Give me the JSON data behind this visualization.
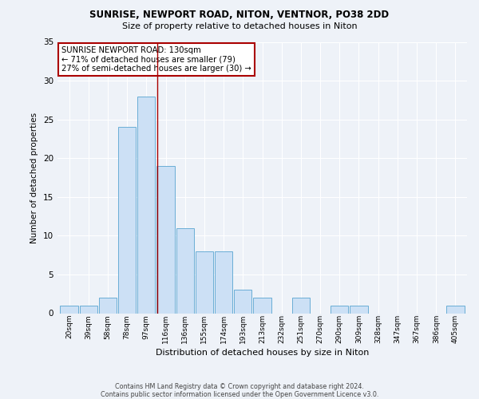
{
  "title1": "SUNRISE, NEWPORT ROAD, NITON, VENTNOR, PO38 2DD",
  "title2": "Size of property relative to detached houses in Niton",
  "xlabel": "Distribution of detached houses by size in Niton",
  "ylabel": "Number of detached properties",
  "categories": [
    "20sqm",
    "39sqm",
    "58sqm",
    "78sqm",
    "97sqm",
    "116sqm",
    "136sqm",
    "155sqm",
    "174sqm",
    "193sqm",
    "213sqm",
    "232sqm",
    "251sqm",
    "270sqm",
    "290sqm",
    "309sqm",
    "328sqm",
    "347sqm",
    "367sqm",
    "386sqm",
    "405sqm"
  ],
  "bar_heights": [
    1,
    1,
    2,
    24,
    28,
    19,
    11,
    8,
    8,
    3,
    2,
    0,
    2,
    0,
    1,
    1,
    0,
    0,
    0,
    0,
    1
  ],
  "bar_color": "#cce0f5",
  "bar_edge_color": "#6aaed6",
  "annotation_line1": "SUNRISE NEWPORT ROAD: 130sqm",
  "annotation_line2": "← 71% of detached houses are smaller (79)",
  "annotation_line3": "27% of semi-detached houses are larger (30) →",
  "annotation_box_color": "#ffffff",
  "annotation_box_edge_color": "#aa0000",
  "red_line_x": 4.57,
  "red_line_color": "#aa0000",
  "footer1": "Contains HM Land Registry data © Crown copyright and database right 2024.",
  "footer2": "Contains public sector information licensed under the Open Government Licence v3.0.",
  "ylim": [
    0,
    35
  ],
  "yticks": [
    0,
    5,
    10,
    15,
    20,
    25,
    30,
    35
  ],
  "background_color": "#eef2f8",
  "grid_color": "#ffffff"
}
